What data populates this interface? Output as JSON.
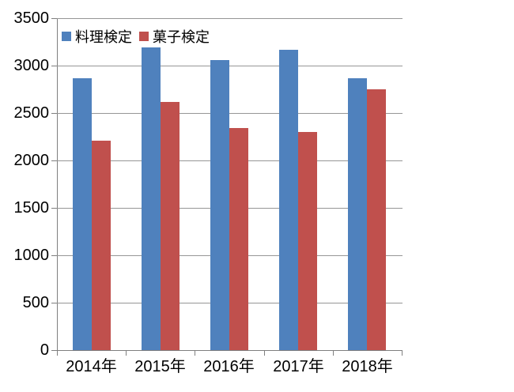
{
  "chart_data": {
    "type": "bar",
    "title": "",
    "categories": [
      "2014年",
      "2015年",
      "2016年",
      "2017年",
      "2018年"
    ],
    "series": [
      {
        "name": "料理検定",
        "color": "#4F81BD",
        "values": [
          2870,
          3190,
          3060,
          3170,
          2870
        ]
      },
      {
        "name": "菓子検定",
        "color": "#C0504D",
        "values": [
          2210,
          2620,
          2340,
          2300,
          2750
        ]
      }
    ],
    "ylim": [
      0,
      3500
    ],
    "ytick_step": 500,
    "ytick_labels": [
      "0",
      "500",
      "1000",
      "1500",
      "2000",
      "2500",
      "3000",
      "3500"
    ],
    "grid": true,
    "legend_position": "top-left",
    "gridline_color": "#969696",
    "axis_color": "#7f7f7f",
    "text_color": "#000000"
  }
}
